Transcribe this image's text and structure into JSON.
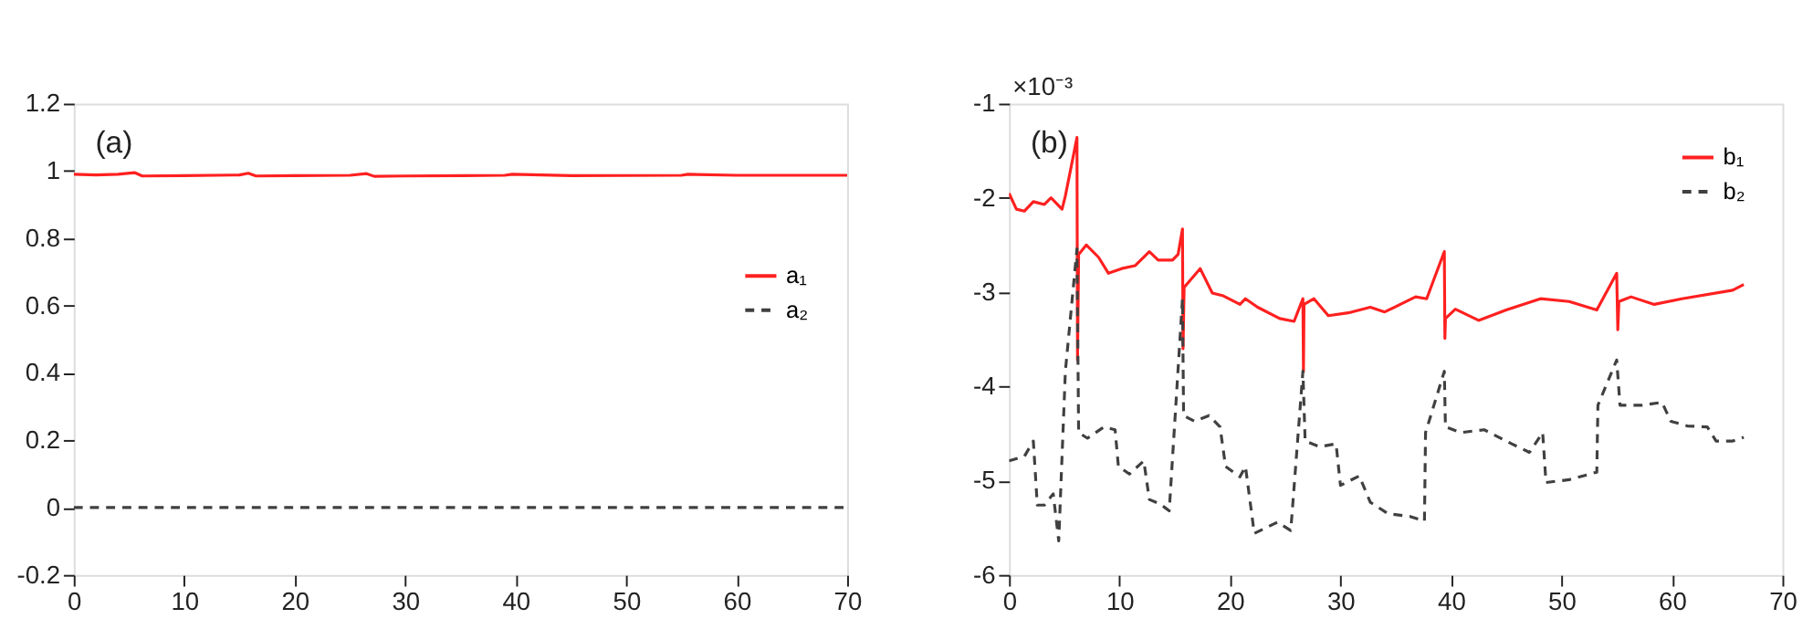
{
  "chart_data": [
    {
      "type": "line",
      "xlim": [
        0,
        70
      ],
      "xticks": [
        0,
        10,
        20,
        30,
        40,
        50,
        60,
        70
      ],
      "ylim": [
        -0.2,
        1.2
      ],
      "yticks": [
        -0.2,
        0,
        0.2,
        0.4,
        0.6,
        0.8,
        1,
        1.2
      ],
      "grid": false,
      "legend": "right",
      "marker": "none",
      "annotations": [
        "(a)"
      ],
      "series": [
        {
          "name": "a₁",
          "color": "#ff2020",
          "line_style": "solid",
          "x": [
            0,
            2,
            4,
            5.5,
            6.2,
            10,
            15,
            15.8,
            16.5,
            20,
            25,
            26.5,
            27.2,
            30,
            39,
            39.7,
            45,
            55,
            55.6,
            60,
            70
          ],
          "values": [
            0.99,
            0.988,
            0.99,
            0.995,
            0.985,
            0.986,
            0.988,
            0.993,
            0.985,
            0.986,
            0.987,
            0.992,
            0.984,
            0.985,
            0.987,
            0.99,
            0.986,
            0.987,
            0.99,
            0.987,
            0.987
          ]
        },
        {
          "name": "a₂",
          "color": "#404040",
          "line_style": "dashed",
          "x": [
            0,
            70
          ],
          "values": [
            0,
            0
          ]
        }
      ]
    },
    {
      "type": "line",
      "xlim": [
        0,
        70
      ],
      "xticks": [
        0,
        10,
        20,
        30,
        40,
        50,
        60,
        70
      ],
      "ylim": [
        -6,
        -1
      ],
      "yticks": [
        -6,
        -5,
        -4,
        -3,
        -2,
        -1
      ],
      "grid": false,
      "legend": "top right",
      "marker": "none",
      "annotations": [
        "(b)",
        "×10⁻³"
      ],
      "series": [
        {
          "name": "b₁",
          "color": "#ff2020",
          "line_style": "solid",
          "x": [
            0,
            0.67,
            1.4,
            2.2,
            3.2,
            3.8,
            4.8,
            5.1,
            6.15,
            6.2,
            6.3,
            7.0,
            8.1,
            9.0,
            10.2,
            11.4,
            12.7,
            13.5,
            14.8,
            15.3,
            15.7,
            15.75,
            15.85,
            17.3,
            18.4,
            19.4,
            20.9,
            21.4,
            22.5,
            24.5,
            25.8,
            26.6,
            26.65,
            26.7,
            27.6,
            28.9,
            30.7,
            32.7,
            34.0,
            36.8,
            37.8,
            39.4,
            39.45,
            39.5,
            40.4,
            42.5,
            45.0,
            48.1,
            50.7,
            53.2,
            55.0,
            55.1,
            55.2,
            56.3,
            58.4,
            60.9,
            65.5,
            66.5
          ],
          "values": [
            -1.95,
            -2.12,
            -2.14,
            -2.04,
            -2.07,
            -2.0,
            -2.12,
            -1.98,
            -1.36,
            -3.72,
            -2.6,
            -2.5,
            -2.63,
            -2.8,
            -2.75,
            -2.72,
            -2.57,
            -2.66,
            -2.66,
            -2.6,
            -2.33,
            -3.6,
            -2.95,
            -2.75,
            -3.01,
            -3.04,
            -3.13,
            -3.07,
            -3.16,
            -3.28,
            -3.31,
            -3.07,
            -3.84,
            -3.13,
            -3.07,
            -3.25,
            -3.22,
            -3.16,
            -3.21,
            -3.05,
            -3.07,
            -2.57,
            -3.49,
            -3.28,
            -3.18,
            -3.3,
            -3.19,
            -3.07,
            -3.1,
            -3.19,
            -2.8,
            -3.4,
            -3.1,
            -3.05,
            -3.13,
            -3.07,
            -2.98,
            -2.92
          ]
        },
        {
          "name": "b₂",
          "color": "#404040",
          "line_style": "dashed",
          "x": [
            0,
            1.4,
            2.2,
            2.56,
            3.2,
            4.0,
            4.5,
            5.1,
            6.15,
            6.3,
            7.1,
            8.6,
            9.6,
            9.9,
            10.9,
            12.2,
            12.7,
            13.7,
            14.5,
            15.7,
            15.8,
            16.8,
            18.1,
            19.1,
            19.6,
            20.9,
            21.4,
            22.2,
            24.3,
            25.5,
            26.6,
            26.8,
            28.1,
            29.6,
            30.0,
            31.7,
            32.7,
            34.3,
            36.3,
            37.6,
            37.7,
            39.4,
            39.5,
            40.9,
            43.0,
            45.5,
            47.1,
            48.3,
            48.6,
            50.7,
            53.2,
            53.3,
            55.0,
            55.3,
            57.3,
            59.1,
            59.9,
            61.4,
            63.2,
            64.0,
            65.5,
            66.5
          ],
          "values": [
            -4.79,
            -4.74,
            -4.58,
            -5.26,
            -5.26,
            -5.14,
            -5.64,
            -3.84,
            -2.54,
            -4.49,
            -4.55,
            -4.43,
            -4.46,
            -4.85,
            -4.93,
            -4.79,
            -5.2,
            -5.25,
            -5.32,
            -3.07,
            -4.31,
            -4.37,
            -4.31,
            -4.43,
            -4.85,
            -4.96,
            -4.85,
            -5.56,
            -5.44,
            -5.53,
            -3.84,
            -4.58,
            -4.64,
            -4.61,
            -5.05,
            -4.95,
            -5.23,
            -5.35,
            -5.38,
            -5.43,
            -4.49,
            -3.84,
            -4.43,
            -4.49,
            -4.46,
            -4.61,
            -4.7,
            -4.49,
            -5.02,
            -4.99,
            -4.91,
            -4.2,
            -3.72,
            -4.2,
            -4.2,
            -4.17,
            -4.37,
            -4.42,
            -4.43,
            -4.58,
            -4.58,
            -4.54
          ]
        }
      ]
    }
  ]
}
